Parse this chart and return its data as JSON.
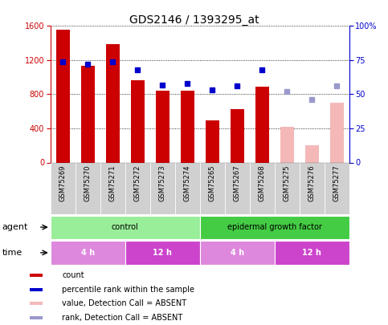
{
  "title": "GDS2146 / 1393295_at",
  "samples": [
    "GSM75269",
    "GSM75270",
    "GSM75271",
    "GSM75272",
    "GSM75273",
    "GSM75274",
    "GSM75265",
    "GSM75267",
    "GSM75268",
    "GSM75275",
    "GSM75276",
    "GSM75277"
  ],
  "bar_values": [
    1560,
    1130,
    1390,
    960,
    840,
    840,
    490,
    630,
    890,
    0,
    0,
    0
  ],
  "bar_color_present": "#cc0000",
  "bar_color_absent": "#f4b8b8",
  "bar_absent_values": [
    0,
    0,
    0,
    0,
    0,
    0,
    0,
    0,
    0,
    420,
    200,
    700
  ],
  "rank_present": [
    74,
    72,
    74,
    68,
    57,
    58,
    53,
    56,
    68,
    0,
    0,
    0
  ],
  "rank_absent": [
    0,
    0,
    0,
    0,
    0,
    0,
    0,
    0,
    0,
    52,
    46,
    56
  ],
  "rank_color_present": "#0000cc",
  "rank_color_absent": "#9999cc",
  "ylim_left": [
    0,
    1600
  ],
  "ylim_right": [
    0,
    100
  ],
  "yticks_left": [
    0,
    400,
    800,
    1200,
    1600
  ],
  "yticks_right": [
    0,
    25,
    50,
    75,
    100
  ],
  "yticklabels_right": [
    "0",
    "25",
    "50",
    "75",
    "100%"
  ],
  "bar_width": 0.55,
  "agent_groups": [
    {
      "label": "control",
      "start": 0,
      "end": 6,
      "color": "#99ee99"
    },
    {
      "label": "epidermal growth factor",
      "start": 6,
      "end": 12,
      "color": "#44cc44"
    }
  ],
  "time_groups": [
    {
      "label": "4 h",
      "start": 0,
      "end": 3,
      "color": "#dd88dd"
    },
    {
      "label": "12 h",
      "start": 3,
      "end": 6,
      "color": "#cc44cc"
    },
    {
      "label": "4 h",
      "start": 6,
      "end": 9,
      "color": "#dd88dd"
    },
    {
      "label": "12 h",
      "start": 9,
      "end": 12,
      "color": "#cc44cc"
    }
  ],
  "legend_data": [
    {
      "label": "count",
      "color": "#cc0000"
    },
    {
      "label": "percentile rank within the sample",
      "color": "#0000cc"
    },
    {
      "label": "value, Detection Call = ABSENT",
      "color": "#f4b8b8"
    },
    {
      "label": "rank, Detection Call = ABSENT",
      "color": "#9999cc"
    }
  ],
  "agent_row_label": "agent",
  "time_row_label": "time",
  "xlabel_color": "#cc0000",
  "ylabel_right_color": "#0000cc",
  "bg_color": "#ffffff",
  "plot_bg": "#ffffff",
  "xtick_box_color": "#d0d0d0",
  "title_fontsize": 10,
  "tick_fontsize": 7,
  "row_fontsize": 7,
  "label_fontsize": 8
}
